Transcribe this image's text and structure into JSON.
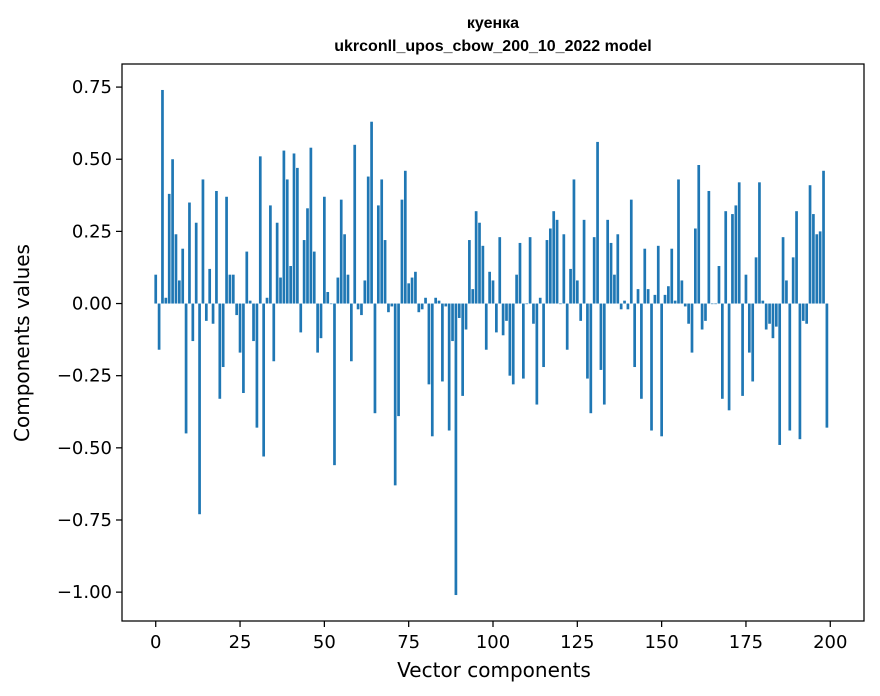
{
  "chart_data": {
    "type": "bar",
    "title": "куенка",
    "subtitle": "ukrconll_upos_cbow_200_10_2022 model",
    "xlabel": "Vector components",
    "ylabel": "Components values",
    "xlim": [
      -10,
      210
    ],
    "ylim": [
      -1.1,
      0.83
    ],
    "xticks": [
      0,
      25,
      50,
      75,
      100,
      125,
      150,
      175,
      200
    ],
    "xtick_labels": [
      "0",
      "25",
      "50",
      "75",
      "100",
      "125",
      "150",
      "175",
      "200"
    ],
    "yticks": [
      0.75,
      0.5,
      0.25,
      0.0,
      -0.25,
      -0.5,
      -0.75,
      -1.0
    ],
    "ytick_labels": [
      "0.75",
      "0.50",
      "0.25",
      "0.00",
      "−0.25",
      "−0.50",
      "−0.75",
      "−1.00"
    ],
    "bar_color": "#1f77b4",
    "grid": false,
    "values": [
      0.1,
      -0.16,
      0.74,
      0.02,
      0.38,
      0.5,
      0.24,
      0.08,
      0.19,
      -0.45,
      0.35,
      -0.13,
      0.28,
      -0.73,
      0.43,
      -0.06,
      0.12,
      -0.07,
      0.39,
      -0.33,
      -0.22,
      0.37,
      0.1,
      0.1,
      -0.04,
      -0.17,
      -0.31,
      0.18,
      0.01,
      -0.13,
      -0.43,
      0.51,
      -0.53,
      0.02,
      0.34,
      -0.2,
      0.28,
      0.09,
      0.53,
      0.43,
      0.13,
      0.52,
      0.47,
      -0.1,
      0.22,
      0.33,
      0.54,
      0.18,
      -0.17,
      -0.12,
      0.37,
      0.04,
      0.0,
      -0.56,
      0.09,
      0.36,
      0.24,
      0.1,
      -0.2,
      0.55,
      -0.02,
      -0.04,
      0.08,
      0.44,
      0.63,
      -0.38,
      0.34,
      0.43,
      0.22,
      -0.03,
      -0.01,
      -0.63,
      -0.39,
      0.36,
      0.46,
      0.07,
      0.09,
      0.11,
      -0.03,
      -0.02,
      0.02,
      -0.28,
      -0.46,
      0.02,
      0.01,
      -0.27,
      -0.01,
      -0.44,
      -0.13,
      -1.01,
      -0.05,
      -0.32,
      -0.09,
      0.22,
      0.05,
      0.32,
      0.28,
      0.2,
      -0.16,
      0.11,
      0.08,
      -0.1,
      0.23,
      -0.11,
      -0.06,
      -0.25,
      -0.28,
      0.1,
      0.21,
      -0.26,
      0.0,
      0.23,
      -0.07,
      -0.35,
      0.02,
      -0.22,
      0.22,
      0.26,
      0.32,
      0.29,
      0.0,
      0.24,
      -0.16,
      0.12,
      0.43,
      0.08,
      -0.06,
      0.29,
      -0.26,
      -0.38,
      0.23,
      0.56,
      -0.23,
      -0.35,
      0.29,
      0.21,
      0.1,
      0.24,
      -0.02,
      0.01,
      -0.02,
      0.36,
      -0.22,
      0.05,
      -0.33,
      0.19,
      0.05,
      -0.44,
      0.03,
      0.2,
      -0.46,
      0.03,
      0.06,
      0.19,
      0.01,
      0.43,
      0.08,
      -0.01,
      -0.07,
      -0.17,
      0.26,
      0.48,
      -0.09,
      -0.06,
      0.39,
      0.0,
      0.0,
      0.13,
      -0.33,
      0.32,
      -0.37,
      0.31,
      0.34,
      0.42,
      -0.32,
      0.1,
      -0.17,
      -0.27,
      0.16,
      0.42,
      0.01,
      -0.09,
      -0.07,
      -0.12,
      -0.08,
      -0.49,
      0.23,
      0.08,
      -0.44,
      0.16,
      0.32,
      -0.47,
      -0.06,
      -0.07,
      0.41,
      0.31,
      0.24,
      0.25,
      0.46,
      -0.43
    ]
  }
}
